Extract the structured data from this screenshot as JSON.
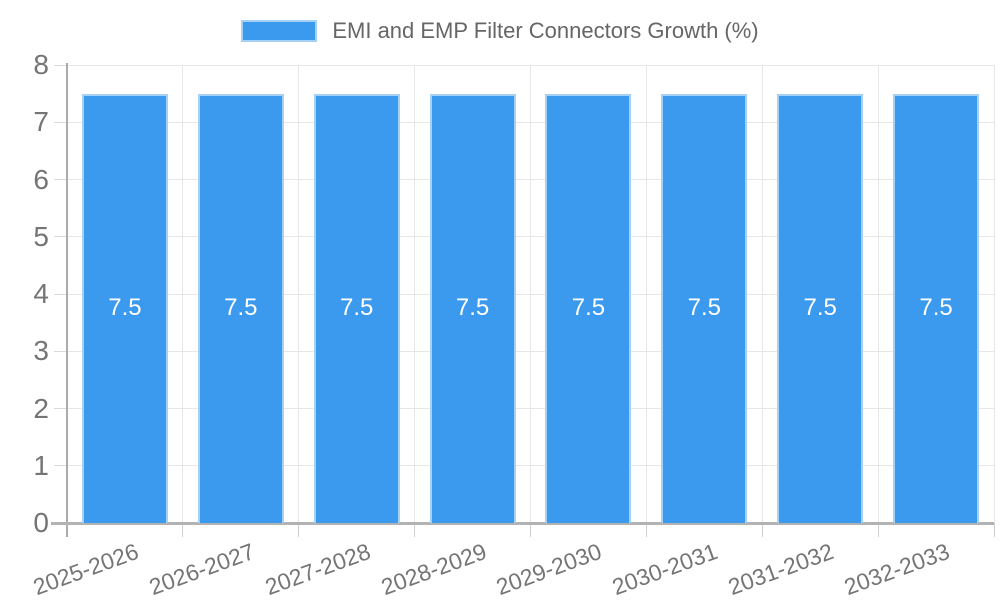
{
  "chart_data": {
    "type": "bar",
    "title": "EMI and EMP Filter Connectors Growth (%)",
    "categories": [
      "2025-2026",
      "2026-2027",
      "2027-2028",
      "2028-2029",
      "2029-2030",
      "2030-2031",
      "2031-2032",
      "2032-2033"
    ],
    "values": [
      7.5,
      7.5,
      7.5,
      7.5,
      7.5,
      7.5,
      7.5,
      7.5
    ],
    "value_labels": [
      "7.5",
      "7.5",
      "7.5",
      "7.5",
      "7.5",
      "7.5",
      "7.5",
      "7.5"
    ],
    "xlabel": "",
    "ylabel": "",
    "ylim": [
      0,
      8
    ],
    "y_ticks": [
      0,
      1,
      2,
      3,
      4,
      5,
      6,
      7,
      8
    ],
    "grid": true,
    "legend_position": "top",
    "colors": {
      "bar_fill": "#3B99EE",
      "bar_border": "rgba(255,255,255,0.55)",
      "grid": "#E6E6E6",
      "axis": "#ABABAB",
      "tick_label": "#757575",
      "legend_text": "#666666",
      "value_label": "#FFFFFF",
      "background": "#FFFFFF"
    }
  }
}
